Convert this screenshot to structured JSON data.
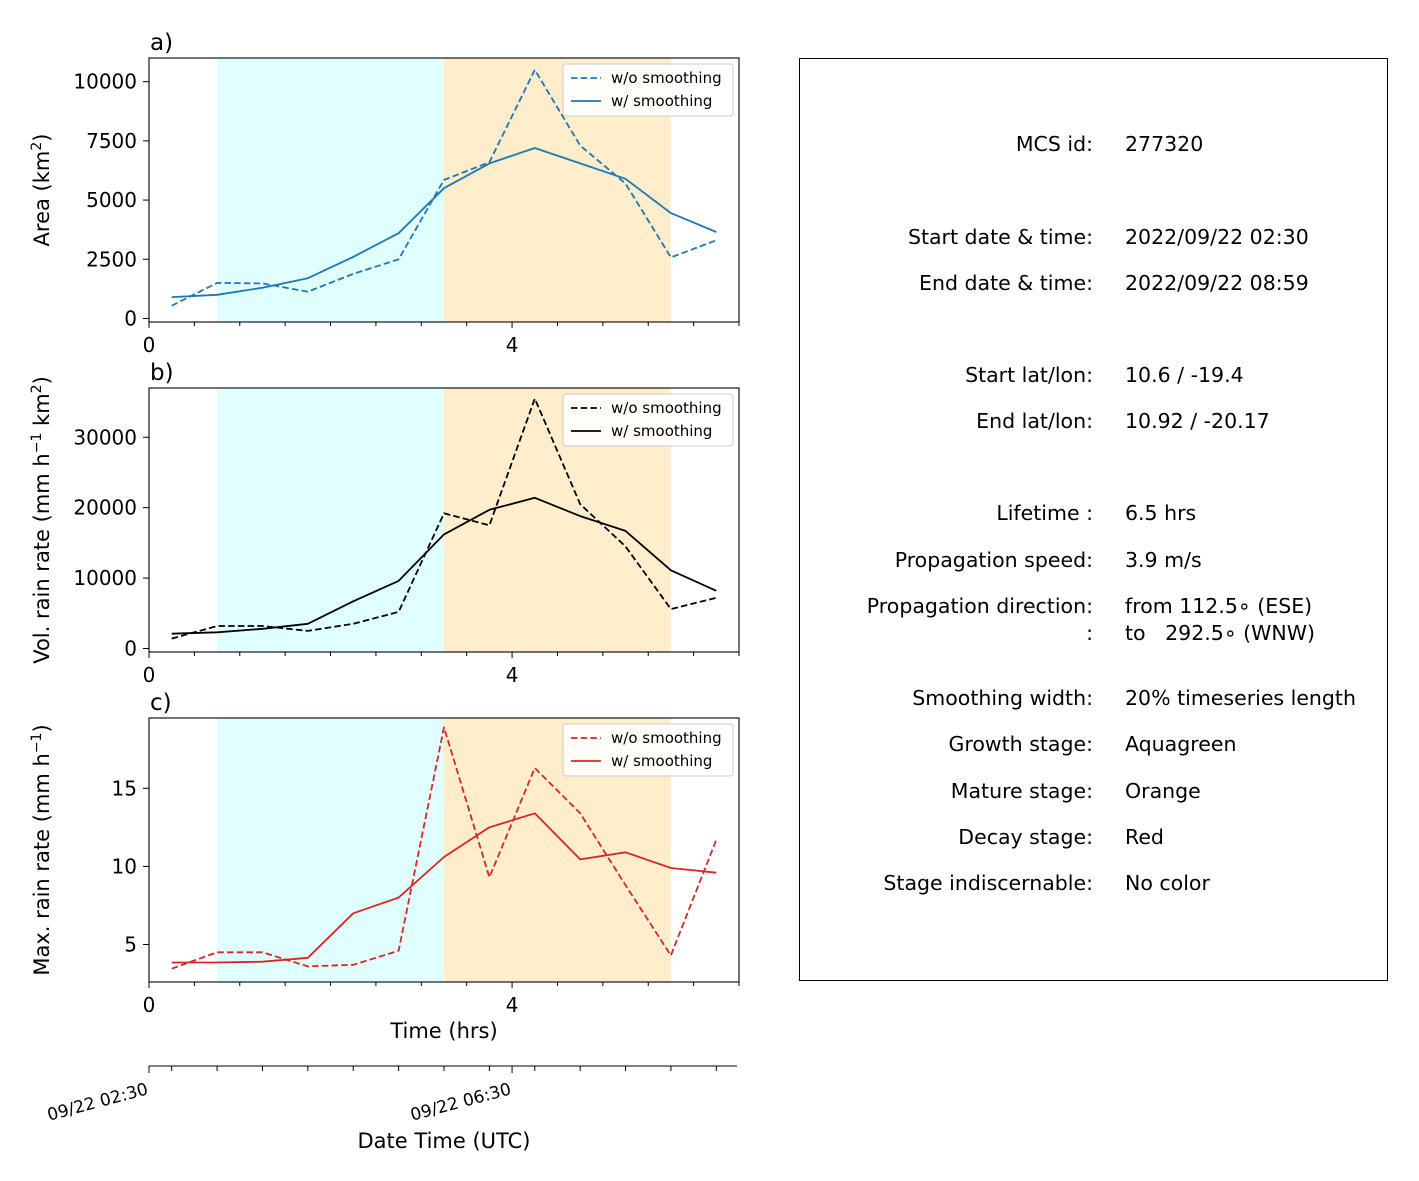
{
  "chart_data": [
    {
      "type": "line",
      "panel_tag": "a)",
      "ylabel": "Area  (km²)",
      "ylabel_parts": [
        "Area  (km",
        "2",
        ")"
      ],
      "xlim": [
        0,
        6.5
      ],
      "ylim": [
        -150,
        11000
      ],
      "y_ticks": [
        0,
        2500,
        5000,
        7500,
        10000
      ],
      "x_ticks": [
        0,
        4
      ],
      "stage_spans": [
        {
          "stage": "growth",
          "from": 0.75,
          "to": 3.25,
          "color": "#e0ffff"
        },
        {
          "stage": "mature",
          "from": 3.25,
          "to": 5.75,
          "color": "#ffedcc"
        }
      ],
      "legend": {
        "placement": "top-right"
      },
      "series": [
        {
          "name": "w/o smoothing",
          "style": "dashed",
          "color": "#1f77b4",
          "x": [
            0.25,
            0.75,
            1.25,
            1.75,
            2.25,
            2.75,
            3.25,
            3.75,
            4.25,
            4.75,
            5.25,
            5.75,
            6.25
          ],
          "values": [
            540,
            1500,
            1480,
            1130,
            1880,
            2500,
            5850,
            6600,
            10500,
            7300,
            5700,
            2580,
            3300
          ]
        },
        {
          "name": "w/ smoothing",
          "style": "solid",
          "color": "#1f77b4",
          "x": [
            0.25,
            0.75,
            1.25,
            1.75,
            2.25,
            2.75,
            3.25,
            3.75,
            4.25,
            4.75,
            5.25,
            5.75,
            6.25
          ],
          "values": [
            900,
            1000,
            1300,
            1700,
            2600,
            3600,
            5500,
            6550,
            7200,
            6550,
            5900,
            4450,
            3650
          ]
        }
      ]
    },
    {
      "type": "line",
      "panel_tag": "b)",
      "ylabel": "Vol. rain rate (mm h⁻¹ km²)",
      "ylabel_parts": [
        "Vol. rain rate (mm h",
        "−1",
        " km",
        "2",
        ")"
      ],
      "xlim": [
        0,
        6.5
      ],
      "ylim": [
        -500,
        37000
      ],
      "y_ticks": [
        0,
        10000,
        20000,
        30000
      ],
      "x_ticks": [
        0,
        4
      ],
      "stage_spans": [
        {
          "stage": "growth",
          "from": 0.75,
          "to": 3.25,
          "color": "#e0ffff"
        },
        {
          "stage": "mature",
          "from": 3.25,
          "to": 5.75,
          "color": "#ffedcc"
        }
      ],
      "legend": {
        "placement": "top-right"
      },
      "series": [
        {
          "name": "w/o smoothing",
          "style": "dashed",
          "color": "#000000",
          "x": [
            0.25,
            0.75,
            1.25,
            1.75,
            2.25,
            2.75,
            3.25,
            3.75,
            4.25,
            4.75,
            5.25,
            5.75,
            6.25
          ],
          "values": [
            1400,
            3200,
            3200,
            2500,
            3500,
            5200,
            19200,
            17500,
            35500,
            20500,
            14500,
            5600,
            7200
          ]
        },
        {
          "name": "w/ smoothing",
          "style": "solid",
          "color": "#000000",
          "x": [
            0.25,
            0.75,
            1.25,
            1.75,
            2.25,
            2.75,
            3.25,
            3.75,
            4.25,
            4.75,
            5.25,
            5.75,
            6.25
          ],
          "values": [
            2100,
            2300,
            2800,
            3500,
            6700,
            9600,
            16200,
            19700,
            21400,
            18800,
            16700,
            11100,
            8200
          ]
        }
      ]
    },
    {
      "type": "line",
      "panel_tag": "c)",
      "ylabel": "Max. rain rate  (mm h⁻¹)",
      "ylabel_parts": [
        "Max. rain rate  (mm h",
        "−1",
        ")"
      ],
      "xlabel": "Time (hrs)",
      "xlim": [
        0,
        6.5
      ],
      "ylim": [
        2.6,
        19.5
      ],
      "y_ticks": [
        5,
        10,
        15
      ],
      "x_ticks": [
        0,
        4
      ],
      "stage_spans": [
        {
          "stage": "growth",
          "from": 0.75,
          "to": 3.25,
          "color": "#e0ffff"
        },
        {
          "stage": "mature",
          "from": 3.25,
          "to": 5.75,
          "color": "#ffedcc"
        }
      ],
      "legend": {
        "placement": "top-right"
      },
      "series": [
        {
          "name": "w/o smoothing",
          "style": "dashed",
          "color": "#d62728",
          "x": [
            0.25,
            0.75,
            1.25,
            1.75,
            2.25,
            2.75,
            3.25,
            3.75,
            4.25,
            4.75,
            5.25,
            5.75,
            6.25
          ],
          "values": [
            3.45,
            4.5,
            4.5,
            3.6,
            3.7,
            4.6,
            18.9,
            9.3,
            16.3,
            13.4,
            8.8,
            4.3,
            11.7
          ]
        },
        {
          "name": "w/ smoothing",
          "style": "solid",
          "color": "#d62728",
          "x": [
            0.25,
            0.75,
            1.25,
            1.75,
            2.25,
            2.75,
            3.25,
            3.75,
            4.25,
            4.75,
            5.25,
            5.75,
            6.25
          ],
          "values": [
            3.85,
            3.85,
            3.9,
            4.15,
            7.0,
            8.0,
            10.6,
            12.5,
            13.4,
            10.45,
            10.9,
            9.9,
            9.6
          ]
        }
      ]
    }
  ],
  "datetime_axis": {
    "xlabel": "Date Time (UTC)",
    "ticks": [
      {
        "at": 0,
        "label": "09/22 02:30"
      },
      {
        "at": 4,
        "label": "09/22 06:30"
      }
    ]
  },
  "info_panel": [
    {
      "key": "MCS id:",
      "value": "277320"
    },
    {
      "key": "Start date & time:",
      "value": "2022/09/22 02:30"
    },
    {
      "key": "End date & time:",
      "value": "2022/09/22 08:59"
    },
    {
      "key": "Start lat/lon:",
      "value": "10.6 / -19.4"
    },
    {
      "key": "End lat/lon:",
      "value": "10.92 / -20.17"
    },
    {
      "key": "Lifetime :",
      "value": "6.5 hrs"
    },
    {
      "key": "Propagation speed:",
      "value": "3.9 m/s"
    },
    {
      "key": "Propagation direction:",
      "value": "from 112.5∘ (ESE)"
    },
    {
      "key": ":",
      "value": "to   292.5∘ (WNW)"
    },
    {
      "key": "Smoothing width:",
      "value": "20% timeseries length"
    },
    {
      "key": "Growth stage:",
      "value": "Aquagreen"
    },
    {
      "key": "Mature stage:",
      "value": "Orange"
    },
    {
      "key": "Decay stage:",
      "value": "Red"
    },
    {
      "key": "Stage indiscernable:",
      "value": "No color"
    }
  ]
}
